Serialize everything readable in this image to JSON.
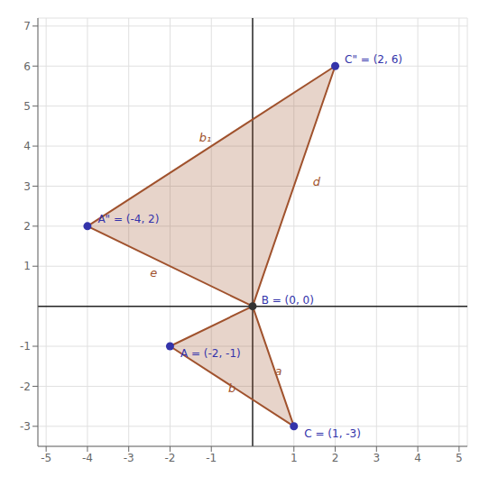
{
  "chart_data": {
    "type": "scatter",
    "xlim": [
      -5.2,
      5.2
    ],
    "ylim": [
      -3.5,
      7.2
    ],
    "xticks": [
      -5,
      -4,
      -3,
      -2,
      -1,
      1,
      2,
      3,
      4,
      5
    ],
    "yticks": [
      -3,
      -2,
      -1,
      1,
      2,
      3,
      4,
      5,
      6,
      7
    ],
    "grid": true,
    "series": [
      {
        "type": "polygon",
        "x": [
          0,
          1,
          -2
        ],
        "values": [
          0,
          -3,
          -1
        ],
        "color": "#a0522d"
      },
      {
        "type": "polygon",
        "x": [
          0,
          2,
          -4
        ],
        "values": [
          0,
          6,
          2
        ],
        "color": "#a0522d"
      },
      {
        "type": "scatter",
        "x": [
          0,
          1,
          -2,
          2,
          -4
        ],
        "values": [
          0,
          -3,
          -1,
          6,
          2
        ],
        "colors": [
          "#333333",
          "#3333aa",
          "#3333aa",
          "#3333aa",
          "#3333aa"
        ],
        "marker": "circle"
      }
    ],
    "annotations": [
      {
        "text": "B = (0, 0)",
        "x": 0.08,
        "y": 0.05,
        "color": "#3333aa"
      },
      {
        "text": "C = (1, -3)",
        "x": 1.12,
        "y": -3.08,
        "color": "#3333aa"
      },
      {
        "text": "A = (-2, -1)",
        "x": -1.88,
        "y": -1.08,
        "color": "#3333aa"
      },
      {
        "text": "C\" = (2, 6)",
        "x": 2.1,
        "y": 6.08,
        "color": "#3333aa"
      },
      {
        "text": "A\" = (-4, 2)",
        "x": -3.88,
        "y": 2.08,
        "color": "#3333aa"
      },
      {
        "text": "a",
        "x": 0.62,
        "y": -1.65,
        "color": "#a0522d"
      },
      {
        "text": "b",
        "x": -0.5,
        "y": -2.08,
        "color": "#a0522d"
      },
      {
        "text": "b₁",
        "x": -1.15,
        "y": 4.2,
        "color": "#a0522d"
      },
      {
        "text": "d",
        "x": 1.55,
        "y": 3.1,
        "color": "#a0522d"
      },
      {
        "text": "e",
        "x": -2.4,
        "y": 0.82,
        "color": "#a0522d"
      }
    ]
  }
}
